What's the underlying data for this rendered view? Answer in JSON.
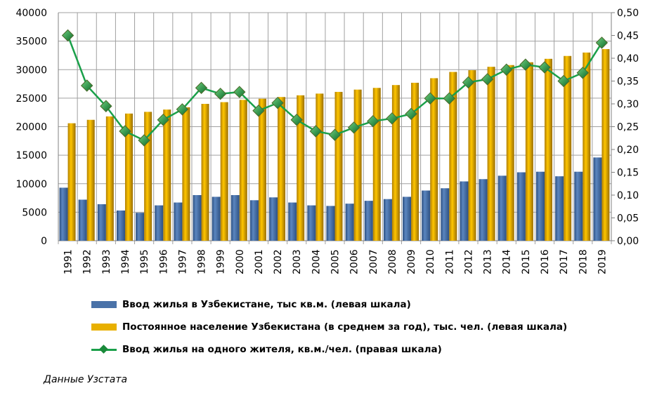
{
  "chart_data": {
    "type": "bar",
    "categories": [
      "1991",
      "1992",
      "1993",
      "1994",
      "1995",
      "1996",
      "1997",
      "1998",
      "1999",
      "2000",
      "2001",
      "2002",
      "2003",
      "2004",
      "2005",
      "2006",
      "2007",
      "2008",
      "2009",
      "2010",
      "2011",
      "2012",
      "2013",
      "2014",
      "2015",
      "2016",
      "2017",
      "2018",
      "2019"
    ],
    "series": [
      {
        "name": "Ввод жилья в Узбекистане, тыс кв.м. (левая шкала)",
        "type": "bar",
        "axis": "left",
        "color": "#4a72a8",
        "values": [
          9300,
          7200,
          6400,
          5300,
          4900,
          6200,
          6700,
          8000,
          7700,
          8000,
          7100,
          7600,
          6700,
          6200,
          6100,
          6500,
          7000,
          7300,
          7700,
          8800,
          9200,
          10400,
          10800,
          11400,
          12000,
          12100,
          11300,
          12100,
          14600
        ]
      },
      {
        "name": "Постоянное население Узбекистана (в среднем за год), тыс. чел. (левая шкала)",
        "type": "bar",
        "axis": "left",
        "color": "#e8b000",
        "values": [
          20600,
          21200,
          21800,
          22300,
          22600,
          23000,
          23400,
          24000,
          24300,
          24700,
          24900,
          25200,
          25500,
          25800,
          26100,
          26500,
          26800,
          27300,
          27700,
          28500,
          29600,
          29900,
          30500,
          30800,
          31300,
          31900,
          32400,
          33000,
          33600
        ]
      },
      {
        "name": "Ввод жилья на одного жителя, кв.м./чел. (правая шкала)",
        "type": "line",
        "axis": "right",
        "color": "#1aa04a",
        "values": [
          0.45,
          0.34,
          0.295,
          0.24,
          0.22,
          0.265,
          0.288,
          0.335,
          0.322,
          0.326,
          0.285,
          0.302,
          0.265,
          0.24,
          0.232,
          0.248,
          0.262,
          0.268,
          0.278,
          0.312,
          0.312,
          0.347,
          0.354,
          0.375,
          0.386,
          0.38,
          0.35,
          0.368,
          0.434
        ]
      }
    ],
    "left_axis": {
      "ylim": [
        0,
        40000
      ],
      "ticks": [
        "0",
        "5000",
        "10000",
        "15000",
        "20000",
        "25000",
        "30000",
        "35000",
        "40000"
      ]
    },
    "right_axis": {
      "ylim": [
        0,
        0.5
      ],
      "ticks": [
        "0,00",
        "0,05",
        "0,10",
        "0,15",
        "0,20",
        "0,25",
        "0,30",
        "0,35",
        "0,40",
        "0,45",
        "0,50"
      ]
    },
    "grid": true,
    "legend_position": "bottom-left"
  },
  "source": "Данные Узстата"
}
